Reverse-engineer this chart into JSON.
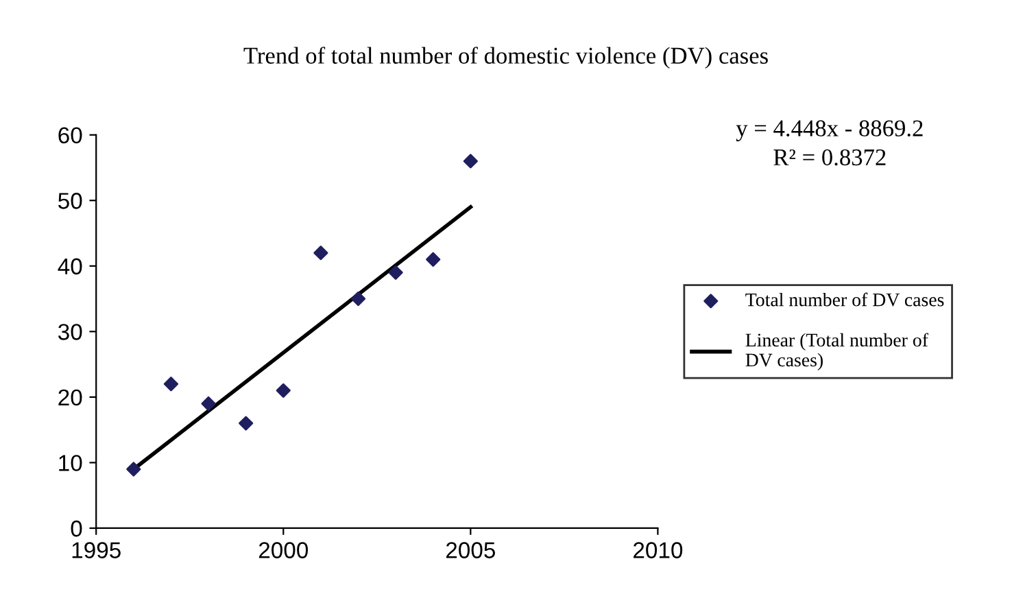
{
  "chart_data": {
    "type": "scatter",
    "title": "Trend of total number of domestic violence (DV) cases",
    "x": [
      1996,
      1997,
      1998,
      1999,
      2000,
      2001,
      2002,
      2003,
      2004,
      2005
    ],
    "series": [
      {
        "name": "Total number of DV cases",
        "color": "#1f1f5f",
        "marker": "diamond",
        "values": [
          9,
          22,
          19,
          16,
          21,
          42,
          35,
          39,
          41,
          56
        ]
      },
      {
        "name": "Linear (Total number of DV cases)",
        "type": "line",
        "color": "#000000",
        "marker": "none",
        "line_style": "solid",
        "x": [
          1996,
          2005
        ],
        "values": [
          9.0,
          49.0
        ]
      }
    ],
    "annotations": [
      "y = 4.448x - 8869.2",
      "R² = 0.8372"
    ],
    "xlim": [
      1995,
      2010
    ],
    "xticks": [
      1995,
      2000,
      2005,
      2010
    ],
    "ylim": [
      0,
      60
    ],
    "yticks": [
      0,
      10,
      20,
      30,
      40,
      50,
      60
    ],
    "grid": false,
    "legend": "right"
  }
}
